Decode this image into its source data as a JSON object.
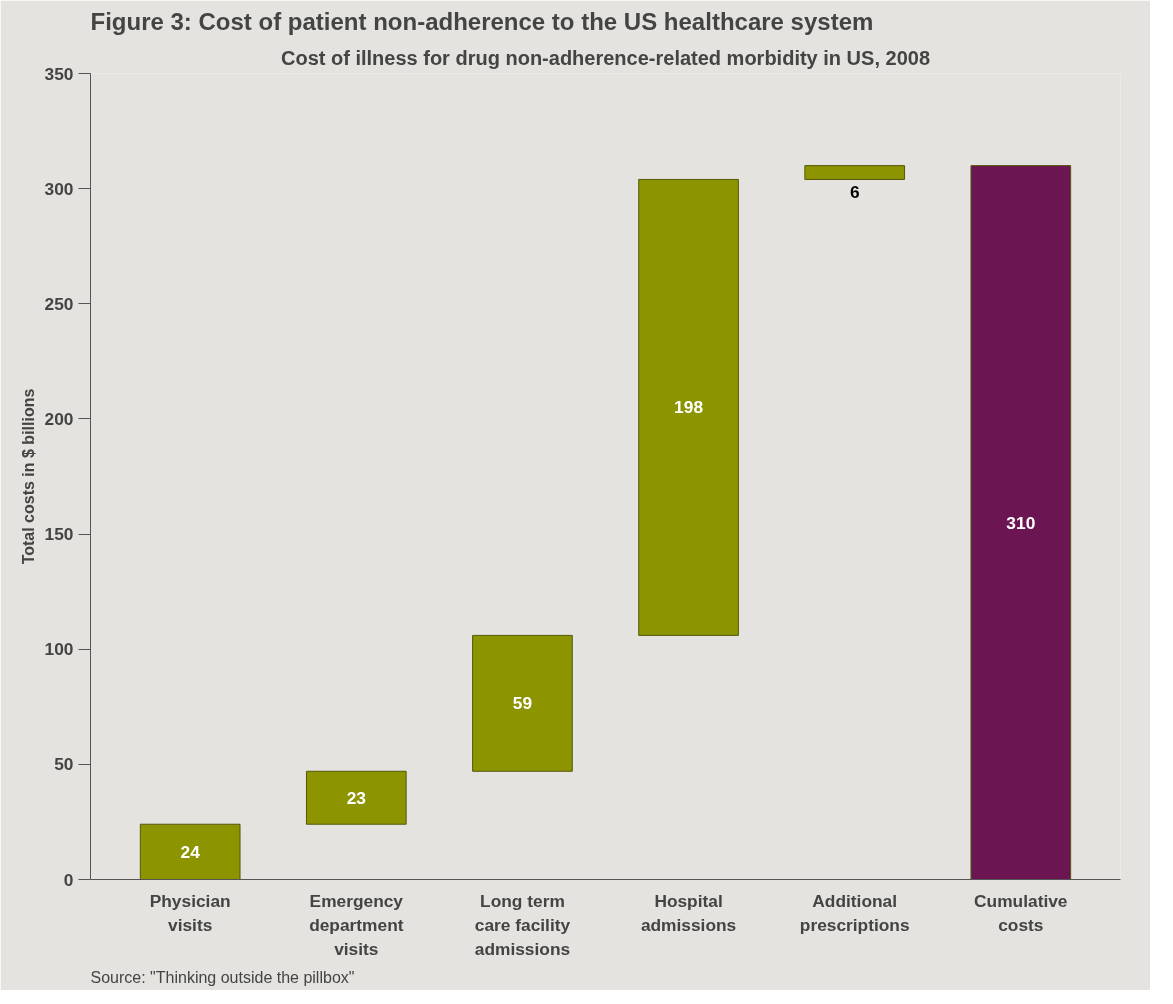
{
  "chart_data": {
    "type": "bar",
    "title": "Figure 3: Cost of patient non-adherence to the US healthcare system",
    "subtitle": "Cost of illness for drug non-adherence-related morbidity in US, 2008",
    "ylabel": "Total costs in $ billions",
    "categories": [
      "Physician visits",
      "Emergency department visits",
      "Long term care facility admissions",
      "Hospital admissions",
      "Additional prescriptions",
      "Cumulative costs"
    ],
    "values": [
      24,
      23,
      59,
      198,
      6,
      310
    ],
    "base": [
      0,
      24,
      47,
      106,
      304,
      0
    ],
    "colors": [
      "#8c9400",
      "#8c9400",
      "#8c9400",
      "#8c9400",
      "#8c9400",
      "#6b1552"
    ],
    "ylim": [
      0,
      350
    ],
    "yticks": [
      0,
      50,
      100,
      150,
      200,
      250,
      300,
      350
    ],
    "data_labels": true,
    "grid": false,
    "annotations": [
      "Source: \"Thinking outside the pillbox\""
    ]
  }
}
